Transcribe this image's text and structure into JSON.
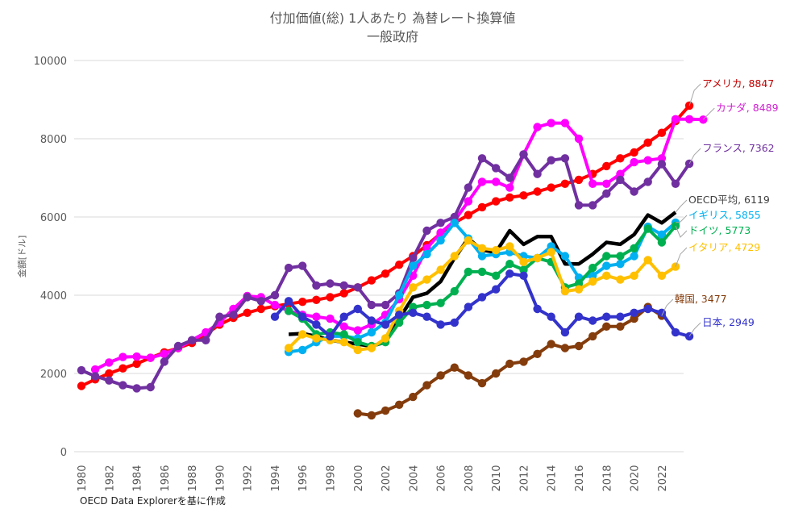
{
  "chart_data": {
    "type": "line",
    "title": "付加価値(総) 1人あたり 為替レート換算値",
    "subtitle": "一般政府",
    "ylabel": "金額[ドル]",
    "xlabel": "",
    "source": "OECD Data Explorerを基に作成",
    "ylim": [
      0,
      10000
    ],
    "yticks": [
      0,
      2000,
      4000,
      6000,
      8000,
      10000
    ],
    "ytick_labels": [
      "0",
      "2000",
      "4000",
      "6000",
      "8000",
      "10000"
    ],
    "xlim": [
      1980,
      2023
    ],
    "xticks": [
      1980,
      1982,
      1984,
      1986,
      1988,
      1990,
      1992,
      1994,
      1996,
      1998,
      2000,
      2002,
      2004,
      2006,
      2008,
      2010,
      2012,
      2014,
      2016,
      2018,
      2020,
      2022
    ],
    "xtick_labels": [
      "1980",
      "1982",
      "1984",
      "1986",
      "1988",
      "1990",
      "1992",
      "1994",
      "1996",
      "1998",
      "2000",
      "2002",
      "2004",
      "2006",
      "2008",
      "2010",
      "2012",
      "2014",
      "2016",
      "2018",
      "2020",
      "2022"
    ],
    "grid": true,
    "series": [
      {
        "name": "アメリカ",
        "label": "アメリカ, 8847",
        "color": "#ff0000",
        "label_color": "#c00000",
        "markers": true,
        "start": 1980,
        "values": [
          1680,
          1850,
          2000,
          2130,
          2250,
          2400,
          2540,
          2650,
          2780,
          3000,
          3250,
          3420,
          3550,
          3650,
          3720,
          3780,
          3830,
          3880,
          3950,
          4050,
          4200,
          4380,
          4550,
          4780,
          5000,
          5280,
          5580,
          5850,
          6050,
          6250,
          6400,
          6500,
          6550,
          6650,
          6750,
          6850,
          6950,
          7100,
          7300,
          7500,
          7650,
          7900,
          8150,
          8450,
          8847
        ]
      },
      {
        "name": "カナダ",
        "label": "カナダ, 8489",
        "color": "#ff00ff",
        "label_color": "#d020d0",
        "markers": true,
        "start": 1981,
        "values": [
          2100,
          2280,
          2420,
          2430,
          2400,
          2500,
          2650,
          2850,
          3050,
          3300,
          3650,
          3980,
          3950,
          3750,
          3600,
          3500,
          3450,
          3400,
          3200,
          3100,
          3250,
          3500,
          3900,
          4500,
          5200,
          5600,
          5900,
          6400,
          6900,
          6900,
          6750,
          7600,
          8300,
          8400,
          8400,
          8000,
          6850,
          6850,
          7100,
          7400,
          7450,
          7500,
          8500,
          8500,
          8489
        ]
      },
      {
        "name": "フランス",
        "label": "フランス, 7362",
        "color": "#7030a0",
        "label_color": "#7030a0",
        "markers": true,
        "start": 1980,
        "values": [
          2080,
          1930,
          1820,
          1700,
          1620,
          1650,
          2300,
          2700,
          2850,
          2850,
          3450,
          3500,
          3950,
          3850,
          4000,
          4700,
          4750,
          4250,
          4300,
          4250,
          4200,
          3750,
          3750,
          4050,
          4950,
          5650,
          5850,
          6000,
          6750,
          7500,
          7250,
          7000,
          7600,
          7100,
          7450,
          7500,
          6300,
          6300,
          6600,
          6950,
          6650,
          6900,
          7350,
          6850,
          7362
        ]
      },
      {
        "name": "OECD平均",
        "label": "OECD平均, 6119",
        "color": "#000000",
        "label_color": "#404040",
        "markers": false,
        "start": 1995,
        "values": [
          3000,
          3020,
          2950,
          2850,
          2800,
          2750,
          2700,
          2800,
          3400,
          3950,
          4050,
          4350,
          4950,
          5450,
          5150,
          5100,
          5650,
          5300,
          5500,
          5500,
          4800,
          4800,
          5050,
          5350,
          5300,
          5550,
          6050,
          5850,
          6119
        ]
      },
      {
        "name": "イギリス",
        "label": "イギリス, 5855",
        "color": "#00b0f0",
        "label_color": "#00b0f0",
        "markers": true,
        "start": 1995,
        "values": [
          2550,
          2600,
          2800,
          2950,
          2950,
          2900,
          3050,
          3300,
          4000,
          4750,
          5050,
          5400,
          5850,
          5450,
          5000,
          5050,
          5100,
          5000,
          4950,
          5250,
          5000,
          4450,
          4500,
          4750,
          4800,
          5000,
          5750,
          5550,
          5855
        ]
      },
      {
        "name": "ドイツ",
        "label": "ドイツ, 5773",
        "color": "#00b050",
        "label_color": "#00b050",
        "markers": true,
        "start": 1995,
        "values": [
          3600,
          3400,
          3000,
          3050,
          3000,
          2800,
          2700,
          2800,
          3300,
          3700,
          3750,
          3800,
          4100,
          4600,
          4600,
          4500,
          4800,
          4650,
          4950,
          4850,
          4200,
          4300,
          4700,
          5000,
          5000,
          5200,
          5700,
          5350,
          5773
        ]
      },
      {
        "name": "イタリア",
        "label": "イタリア, 4729",
        "color": "#ffc000",
        "label_color": "#ffc000",
        "markers": true,
        "start": 1995,
        "values": [
          2650,
          3000,
          2900,
          2850,
          2800,
          2600,
          2650,
          2900,
          3600,
          4200,
          4400,
          4650,
          5000,
          5400,
          5200,
          5150,
          5250,
          4850,
          4950,
          5100,
          4100,
          4150,
          4350,
          4500,
          4400,
          4500,
          4900,
          4500,
          4729
        ]
      },
      {
        "name": "韓国",
        "label": "韓国, 3477",
        "color": "#843c0c",
        "label_color": "#843c0c",
        "markers": true,
        "start": 2000,
        "values": [
          980,
          930,
          1050,
          1200,
          1400,
          1700,
          1950,
          2150,
          1950,
          1750,
          2000,
          2250,
          2300,
          2500,
          2750,
          2650,
          2700,
          2950,
          3200,
          3200,
          3400,
          3700,
          3477
        ]
      },
      {
        "name": "日本",
        "label": "日本, 2949",
        "color": "#3333cc",
        "label_color": "#3333cc",
        "markers": true,
        "start": 1994,
        "values": [
          3450,
          3850,
          3450,
          3250,
          2950,
          3450,
          3650,
          3350,
          3250,
          3500,
          3550,
          3450,
          3250,
          3300,
          3700,
          3950,
          4150,
          4550,
          4500,
          3650,
          3450,
          3050,
          3450,
          3350,
          3450,
          3450,
          3550,
          3650,
          3550,
          3050,
          2949
        ]
      }
    ]
  }
}
